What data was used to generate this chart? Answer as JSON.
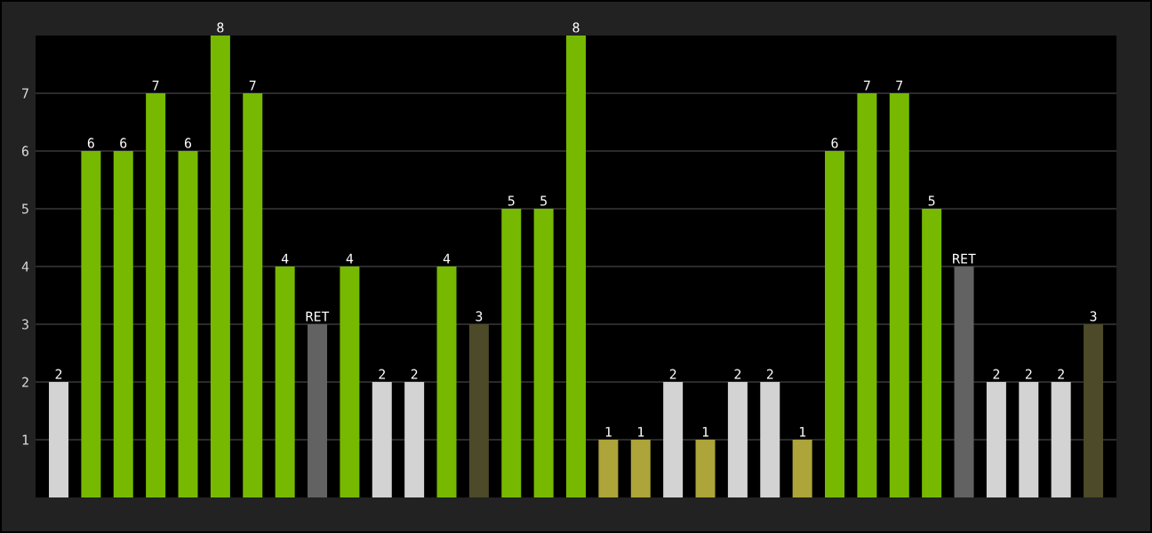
{
  "chart_data": {
    "type": "bar",
    "categories": [
      null,
      null,
      null,
      null,
      null,
      null,
      null,
      null,
      null,
      null,
      null,
      null,
      null,
      null,
      null,
      null,
      null,
      null,
      null,
      null,
      null,
      null,
      null,
      null,
      null,
      null,
      null,
      null,
      null,
      null,
      null,
      null,
      null
    ],
    "values": [
      2,
      6,
      6,
      7,
      6,
      8,
      7,
      4,
      3,
      4,
      2,
      2,
      4,
      3,
      5,
      5,
      8,
      1,
      1,
      2,
      1,
      2,
      2,
      1,
      6,
      7,
      7,
      5,
      4,
      2,
      2,
      2,
      3
    ],
    "colors": [
      "#d3d3d3",
      "#76b900",
      "#76b900",
      "#76b900",
      "#76b900",
      "#76b900",
      "#76b900",
      "#76b900",
      "#626262",
      "#76b900",
      "#d3d3d3",
      "#d3d3d3",
      "#76b900",
      "#4c4a28",
      "#76b900",
      "#76b900",
      "#76b900",
      "#ada43a",
      "#ada43a",
      "#d3d3d3",
      "#ada43a",
      "#d3d3d3",
      "#d3d3d3",
      "#ada43a",
      "#76b900",
      "#76b900",
      "#76b900",
      "#76b900",
      "#626262",
      "#d3d3d3",
      "#d3d3d3",
      "#d3d3d3",
      "#4c4a28"
    ],
    "value_labels": [
      "2",
      "6",
      "6",
      "7",
      "6",
      "8",
      "7",
      "4",
      "RET",
      "4",
      "2",
      "2",
      "4",
      "3",
      "5",
      "5",
      "8",
      "1",
      "1",
      "2",
      "1",
      "2",
      "2",
      "1",
      "6",
      "7",
      "7",
      "5",
      "RET",
      "2",
      "2",
      "2",
      "3"
    ],
    "ylim": [
      0,
      8
    ],
    "yticks": [
      1,
      2,
      3,
      4,
      5,
      6,
      7
    ],
    "grid": "y",
    "tick_labels": "y"
  }
}
